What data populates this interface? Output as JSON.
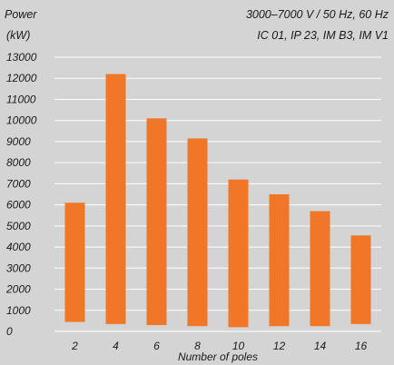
{
  "header": {
    "ylabel_line1": "Power",
    "ylabel_line2": "(kW)",
    "spec_line1": "3000–7000 V / 50 Hz, 60 Hz",
    "spec_line2": "IC 01, IP 23, IM B3, IM V1"
  },
  "chart_data": {
    "type": "bar",
    "style": "floating",
    "categories": [
      "2",
      "4",
      "6",
      "8",
      "10",
      "12",
      "14",
      "16"
    ],
    "series": [
      {
        "low": [
          450,
          350,
          300,
          250,
          200,
          250,
          250,
          350
        ],
        "high": [
          6100,
          12200,
          10100,
          9150,
          7200,
          6500,
          5700,
          4550
        ]
      }
    ],
    "xlabel": "Number of poles",
    "ylabel": "Power (kW)",
    "ylim": [
      0,
      13000
    ],
    "yticks": [
      0,
      1000,
      2000,
      3000,
      4000,
      5000,
      6000,
      7000,
      8000,
      9000,
      10000,
      11000,
      12000,
      13000
    ],
    "grid": true,
    "bar_color": "#f07628",
    "grid_color": "#ffffff",
    "background": "#d4d4d4"
  }
}
